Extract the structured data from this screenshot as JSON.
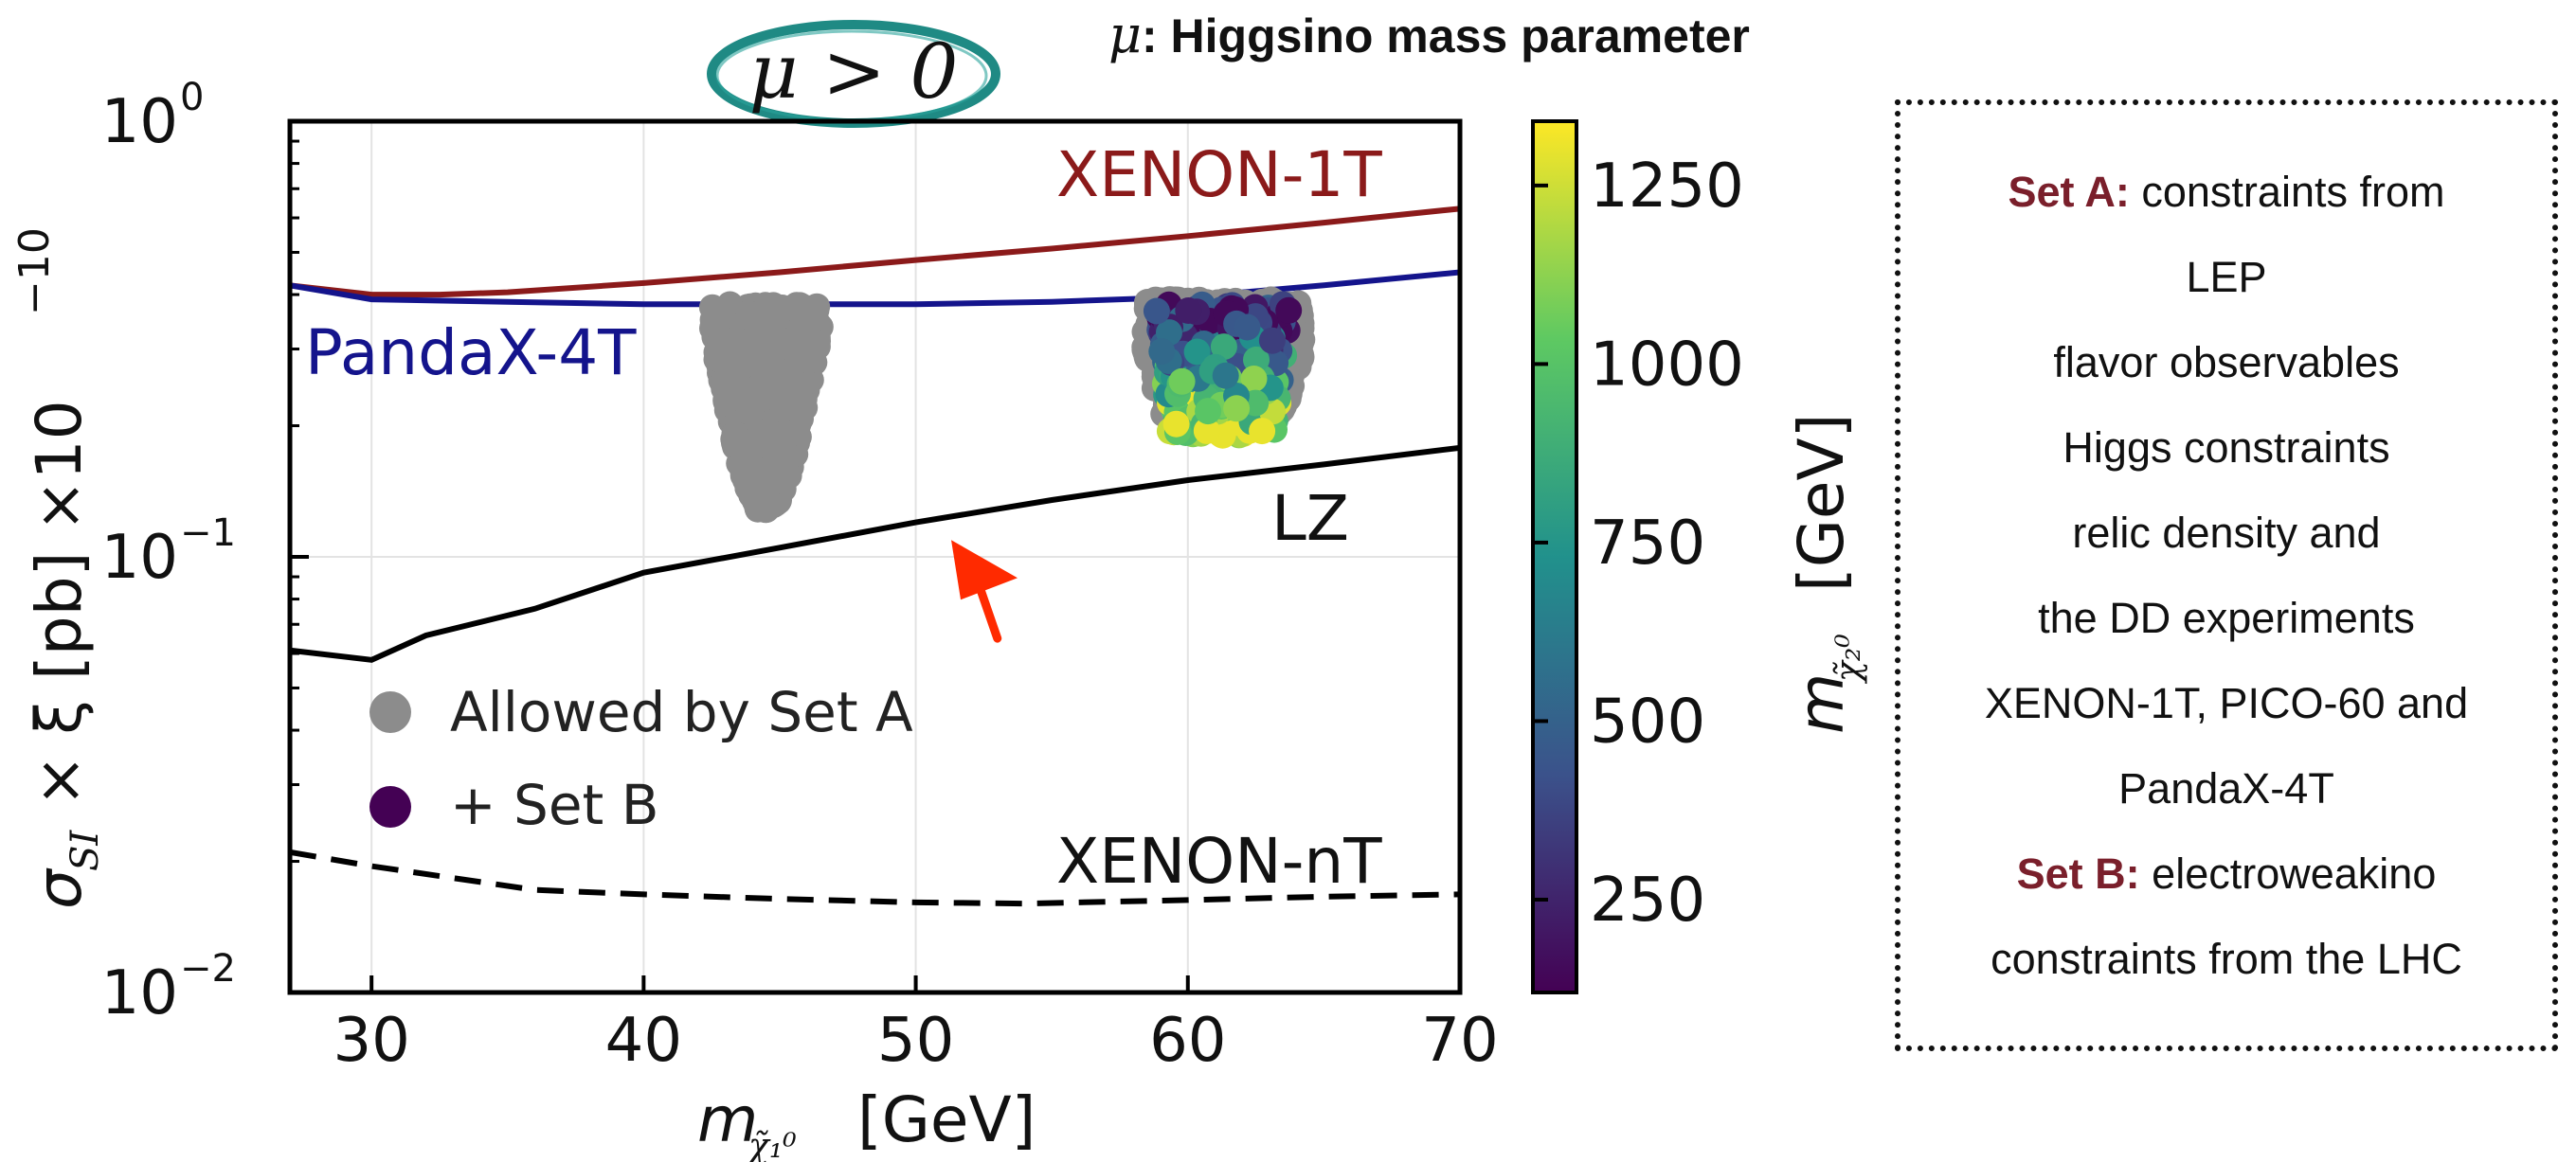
{
  "header": {
    "mu_symbol": "μ",
    "description": ": Higgsino mass parameter",
    "condition_badge": "μ > 0"
  },
  "colorbar": {
    "label": "m_χ̃₂⁰ [GeV]",
    "label_main": "m",
    "label_sub": "χ̃₂⁰",
    "label_unit": "[GeV]",
    "ticks": [
      "250",
      "500",
      "750",
      "1000",
      "1250"
    ],
    "tick_values": [
      250,
      500,
      750,
      1000,
      1250
    ],
    "range": [
      120,
      1340
    ],
    "colors": [
      "#440154",
      "#3b528b",
      "#21918c",
      "#5ec962",
      "#fde725"
    ]
  },
  "side_note": {
    "set_a_label": "Set A:",
    "set_a_text": "constraints from",
    "lines_a": [
      "LEP",
      "flavor observables",
      "Higgs constraints",
      "relic density and",
      "the DD experiments",
      "XENON-1T, PICO-60 and",
      "PandaX-4T"
    ],
    "set_b_label": "Set B:",
    "set_b_text": "electroweakino",
    "lines_b": [
      "constraints from the LHC"
    ]
  },
  "chart_data": {
    "type": "scatter",
    "xlabel": "m_χ̃₁⁰ [GeV]",
    "xlabel_main": "m",
    "xlabel_sub": "χ̃₁⁰",
    "xlabel_unit": "[GeV]",
    "ylabel": "σ_SI × ξ [pb] ×10⁻¹⁰",
    "ylabel_main": "σ",
    "ylabel_sub": "SI",
    "ylabel_rest": "× ξ [pb] ×10",
    "ylabel_exp": "−10",
    "xlim": [
      27,
      70
    ],
    "ylim": [
      0.01,
      1
    ],
    "y_scale": "log",
    "grid": true,
    "x_ticks": [
      30,
      40,
      50,
      60,
      70
    ],
    "x_tick_labels": [
      "30",
      "40",
      "50",
      "60",
      "70"
    ],
    "y_ticks": [
      1,
      0.1,
      0.01
    ],
    "y_tick_bases": [
      "10",
      "10",
      "10"
    ],
    "y_tick_exps": [
      "0",
      "−1",
      "−2"
    ],
    "legend": {
      "position": "lower-left",
      "entries": [
        {
          "label": "Allowed by Set A",
          "color": "#8c8c8c"
        },
        {
          "label": "+ Set B",
          "color": "#440154"
        }
      ]
    },
    "lines": [
      {
        "name": "XENON-1T",
        "color": "#8b1a1a",
        "style": "solid",
        "x": [
          27,
          30,
          32.5,
          35,
          40,
          45,
          50,
          55,
          60,
          65,
          70
        ],
        "y": [
          0.42,
          0.4,
          0.4,
          0.405,
          0.425,
          0.45,
          0.48,
          0.51,
          0.545,
          0.585,
          0.63
        ]
      },
      {
        "name": "PandaX-4T",
        "color": "#14148c",
        "style": "solid",
        "x": [
          27,
          30,
          35,
          40,
          45,
          50,
          55,
          60,
          65,
          70
        ],
        "y": [
          0.42,
          0.39,
          0.385,
          0.38,
          0.38,
          0.38,
          0.385,
          0.395,
          0.42,
          0.45
        ]
      },
      {
        "name": "LZ",
        "color": "#000000",
        "style": "solid",
        "x": [
          27,
          30,
          32,
          36,
          40,
          45,
          50,
          55,
          60,
          65,
          70
        ],
        "y": [
          0.061,
          0.058,
          0.066,
          0.076,
          0.092,
          0.105,
          0.12,
          0.135,
          0.15,
          0.163,
          0.178
        ]
      },
      {
        "name": "XENON-nT",
        "color": "#000000",
        "style": "dashed",
        "x": [
          27,
          30,
          36,
          40,
          45,
          50,
          54,
          60,
          65,
          70
        ],
        "y": [
          0.021,
          0.0195,
          0.0172,
          0.0168,
          0.0164,
          0.0161,
          0.016,
          0.0163,
          0.0166,
          0.0168
        ]
      }
    ],
    "scatter_set_a": {
      "name": "Allowed by Set A",
      "color": "#8c8c8c",
      "regions": [
        {
          "x_center": 44.5,
          "profile": [
            [
              0.38,
              2.0
            ],
            [
              0.33,
              2.0
            ],
            [
              0.28,
              1.8
            ],
            [
              0.23,
              1.5
            ],
            [
              0.19,
              1.25
            ],
            [
              0.16,
              0.95
            ],
            [
              0.14,
              0.6
            ],
            [
              0.128,
              0.3
            ]
          ]
        },
        {
          "x_center": 61.3,
          "profile": [
            [
              0.39,
              2.8
            ],
            [
              0.34,
              2.9
            ],
            [
              0.29,
              2.9
            ],
            [
              0.25,
              2.6
            ],
            [
              0.22,
              2.3
            ],
            [
              0.205,
              2.1
            ]
          ]
        }
      ]
    },
    "scatter_set_b": {
      "name": "+ Set B",
      "x_range": [
        58.8,
        63.8
      ],
      "y_range": [
        0.19,
        0.38
      ],
      "color_range": [
        150,
        1300
      ]
    },
    "annotation": {
      "type": "arrow",
      "color": "#ff2a00",
      "from": [
        53,
        0.065
      ],
      "to": [
        52,
        0.105
      ]
    }
  }
}
